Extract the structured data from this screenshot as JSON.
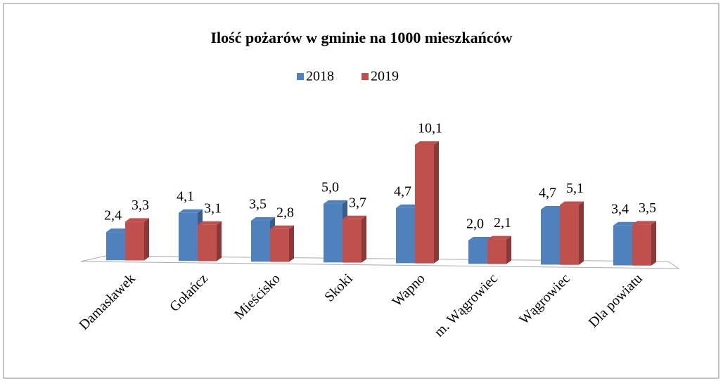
{
  "chart_data": {
    "type": "bar",
    "title": "Ilość pożarów w gminie na 1000 mieszkańców",
    "categories": [
      "Damasławek",
      "Gołańcz",
      "Mieścisko",
      "Skoki",
      "Wapno",
      "m. Wągrowiec",
      "Wągrowiec",
      "Dla powiatu"
    ],
    "series": [
      {
        "name": "2018",
        "color": "#4f81bd",
        "side": "#385d8a",
        "values": [
          2.4,
          4.1,
          3.5,
          5.0,
          4.7,
          2.0,
          4.7,
          3.4
        ],
        "value_labels": [
          "2,4",
          "4,1",
          "3,5",
          "5,0",
          "4,7",
          "2,0",
          "4,7",
          "3,4"
        ]
      },
      {
        "name": "2019",
        "color": "#c0504d",
        "side": "#8c3836",
        "values": [
          3.3,
          3.1,
          2.8,
          3.7,
          10.1,
          2.1,
          5.1,
          3.5
        ],
        "value_labels": [
          "3,3",
          "3,1",
          "2,8",
          "3,7",
          "10,1",
          "2,1",
          "5,1",
          "3,5"
        ]
      }
    ],
    "legend": "top"
  }
}
